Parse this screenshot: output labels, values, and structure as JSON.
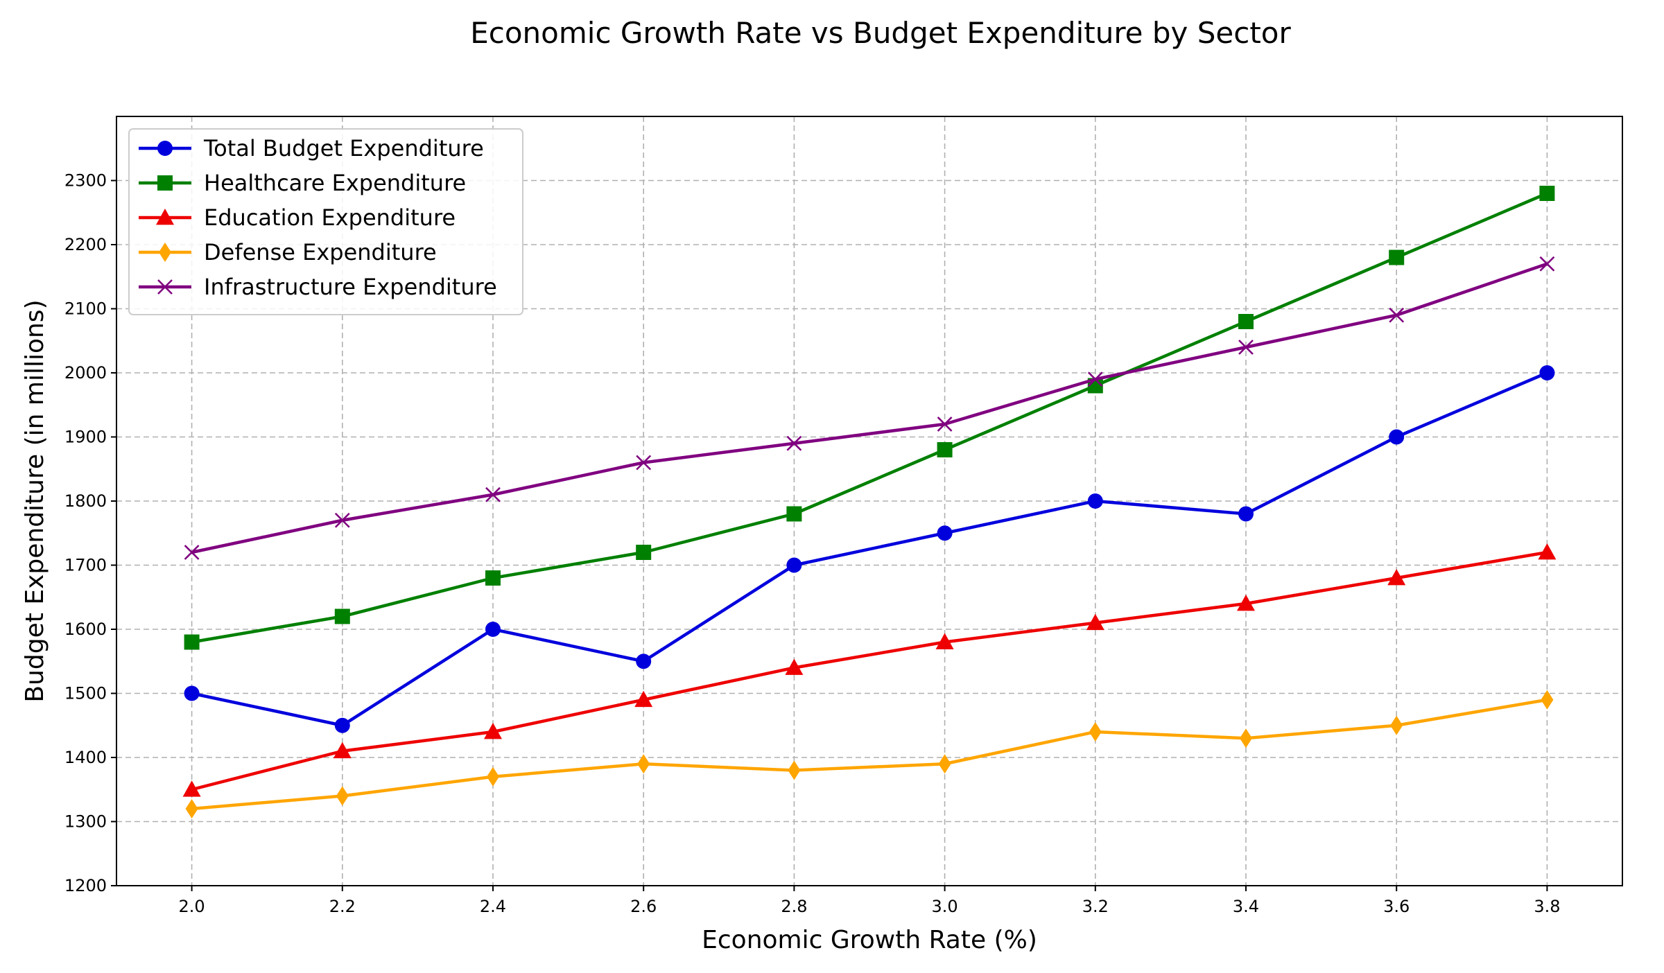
{
  "chart_data": {
    "type": "line",
    "title": "Economic Growth Rate vs Budget Expenditure by Sector",
    "xlabel": "Economic Growth Rate (%)",
    "ylabel": "Budget Expenditure (in millions)",
    "x": [
      2.0,
      2.2,
      2.4,
      2.6,
      2.8,
      3.0,
      3.2,
      3.4,
      3.6,
      3.8
    ],
    "xlim": [
      1.9,
      3.9
    ],
    "ylim": [
      1200,
      2400
    ],
    "xticks": [
      "2.0",
      "2.2",
      "2.4",
      "2.6",
      "2.8",
      "3.0",
      "3.2",
      "3.4",
      "3.6",
      "3.8"
    ],
    "yticks": [
      "1200",
      "1300",
      "1400",
      "1500",
      "1600",
      "1700",
      "1800",
      "1900",
      "2000",
      "2100",
      "2200",
      "2300"
    ],
    "grid": true,
    "legend_position": "top-left",
    "series": [
      {
        "name": "Total Budget Expenditure",
        "color": "#0000dd",
        "marker": "circle",
        "values": [
          1500,
          1450,
          1600,
          1550,
          1700,
          1750,
          1800,
          1780,
          1900,
          2000
        ]
      },
      {
        "name": "Healthcare Expenditure",
        "color": "#008000",
        "marker": "square",
        "values": [
          1580,
          1620,
          1680,
          1720,
          1780,
          1880,
          1980,
          2080,
          2180,
          2280
        ]
      },
      {
        "name": "Education Expenditure",
        "color": "#ee0000",
        "marker": "triangle",
        "values": [
          1350,
          1410,
          1440,
          1490,
          1540,
          1580,
          1610,
          1640,
          1680,
          1720
        ]
      },
      {
        "name": "Defense Expenditure",
        "color": "#ffa500",
        "marker": "diamond",
        "values": [
          1320,
          1340,
          1370,
          1390,
          1380,
          1390,
          1440,
          1430,
          1450,
          1490
        ]
      },
      {
        "name": "Infrastructure Expenditure",
        "color": "#800080",
        "marker": "x",
        "values": [
          1720,
          1770,
          1810,
          1860,
          1890,
          1920,
          1990,
          2040,
          2090,
          2170
        ]
      }
    ]
  }
}
